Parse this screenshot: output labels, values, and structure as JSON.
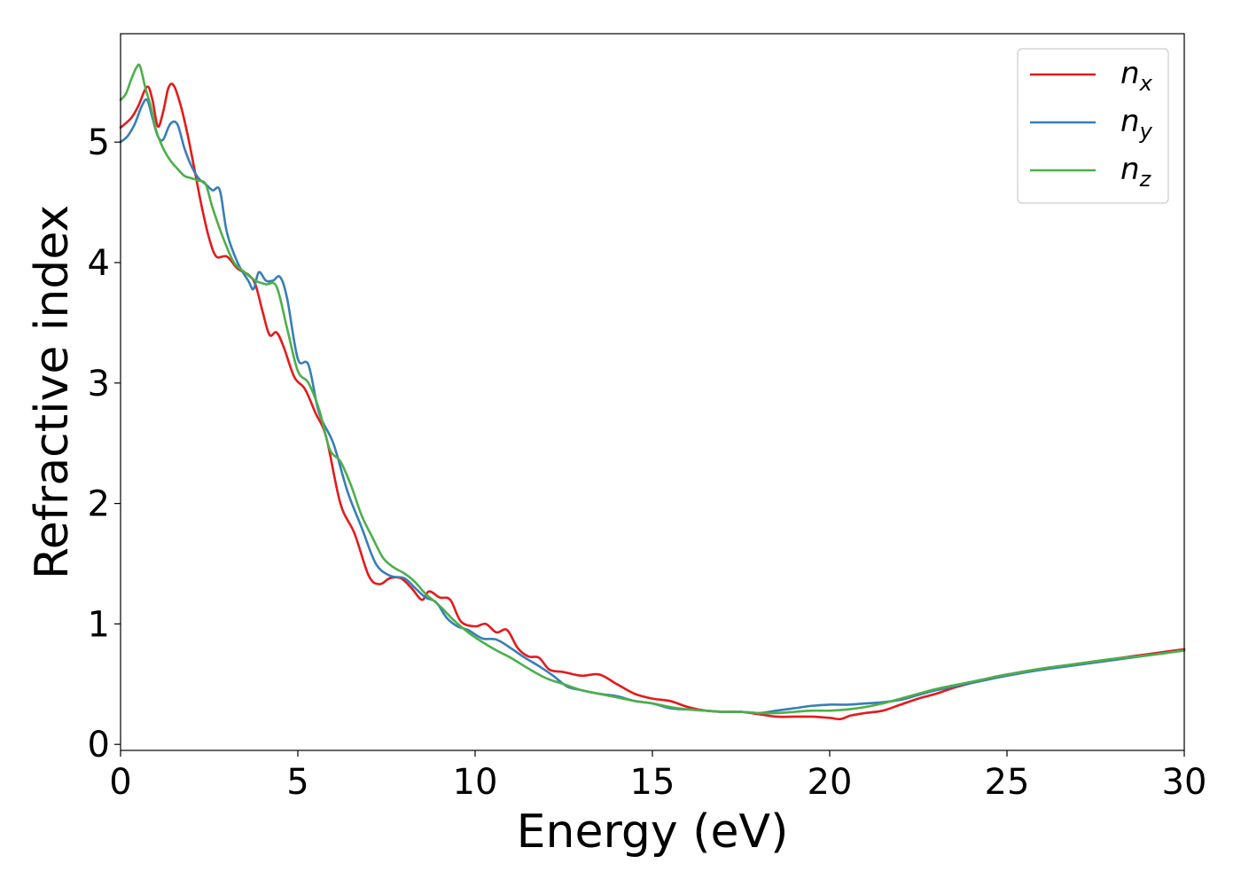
{
  "chart_data": {
    "type": "line",
    "title": "",
    "xlabel": "Energy (eV)",
    "ylabel": "Refractive index",
    "xlim": [
      0,
      30
    ],
    "ylim": [
      -0.05,
      5.9
    ],
    "xticks": [
      "0",
      "5",
      "10",
      "15",
      "20",
      "25",
      "30"
    ],
    "yticks": [
      "0",
      "1",
      "2",
      "3",
      "4",
      "5"
    ],
    "xtick_values": [
      0,
      5,
      10,
      15,
      20,
      25,
      30
    ],
    "ytick_values": [
      0,
      1,
      2,
      3,
      4,
      5
    ],
    "grid": false,
    "legend_position": "top-right",
    "series": [
      {
        "name": "n",
        "sub": "x",
        "color": "#e41a1c",
        "x": [
          0,
          0.3,
          0.5,
          0.75,
          0.9,
          1.05,
          1.2,
          1.35,
          1.5,
          1.7,
          1.9,
          2.1,
          2.3,
          2.5,
          2.7,
          3.0,
          3.3,
          3.6,
          3.8,
          4.0,
          4.2,
          4.4,
          4.6,
          4.9,
          5.2,
          5.5,
          5.8,
          6.2,
          6.6,
          7.0,
          7.3,
          7.6,
          7.9,
          8.2,
          8.5,
          8.7,
          9.0,
          9.3,
          9.6,
          10.0,
          10.3,
          10.6,
          10.9,
          11.2,
          11.5,
          11.8,
          12.1,
          12.5,
          13.0,
          13.5,
          14.0,
          14.5,
          15.0,
          15.5,
          16.0,
          16.5,
          17.0,
          17.5,
          18.0,
          18.5,
          19.0,
          19.5,
          20.0,
          20.3,
          20.6,
          21.0,
          21.5,
          22.0,
          22.5,
          23.0,
          23.5,
          24.0,
          24.5,
          25.0,
          26.0,
          27.0,
          28.0,
          29.0,
          30.0
        ],
        "y": [
          5.12,
          5.2,
          5.3,
          5.46,
          5.35,
          5.13,
          5.25,
          5.45,
          5.47,
          5.3,
          5.05,
          4.75,
          4.45,
          4.2,
          4.05,
          4.05,
          3.95,
          3.9,
          3.82,
          3.6,
          3.4,
          3.42,
          3.3,
          3.05,
          2.95,
          2.75,
          2.55,
          2.0,
          1.75,
          1.4,
          1.33,
          1.38,
          1.38,
          1.3,
          1.2,
          1.27,
          1.22,
          1.2,
          1.02,
          0.98,
          1.0,
          0.93,
          0.95,
          0.8,
          0.73,
          0.72,
          0.62,
          0.6,
          0.57,
          0.58,
          0.5,
          0.42,
          0.38,
          0.36,
          0.31,
          0.28,
          0.27,
          0.27,
          0.25,
          0.23,
          0.23,
          0.23,
          0.22,
          0.21,
          0.24,
          0.26,
          0.28,
          0.33,
          0.38,
          0.42,
          0.47,
          0.51,
          0.55,
          0.58,
          0.63,
          0.67,
          0.71,
          0.75,
          0.79
        ]
      },
      {
        "name": "n",
        "sub": "y",
        "color": "#377eb8",
        "x": [
          0,
          0.2,
          0.4,
          0.6,
          0.75,
          0.9,
          1.05,
          1.2,
          1.4,
          1.6,
          1.8,
          2.0,
          2.2,
          2.4,
          2.6,
          2.8,
          3.0,
          3.3,
          3.6,
          3.75,
          3.9,
          4.1,
          4.3,
          4.5,
          4.7,
          5.0,
          5.3,
          5.6,
          6.0,
          6.4,
          6.8,
          7.2,
          7.6,
          8.0,
          8.3,
          8.6,
          8.9,
          9.2,
          9.5,
          9.8,
          10.2,
          10.6,
          11.0,
          11.4,
          11.8,
          12.2,
          12.6,
          13.0,
          13.5,
          14.0,
          14.5,
          15.0,
          15.5,
          16.0,
          16.5,
          17.0,
          17.5,
          18.0,
          18.5,
          19.0,
          19.5,
          20.0,
          20.5,
          21.0,
          21.5,
          22.0,
          22.5,
          23.0,
          23.5,
          24.0,
          24.5,
          25.0,
          26.0,
          27.0,
          28.0,
          29.0,
          30.0
        ],
        "y": [
          5.0,
          5.05,
          5.15,
          5.3,
          5.35,
          5.2,
          5.05,
          5.02,
          5.15,
          5.15,
          4.95,
          4.8,
          4.7,
          4.65,
          4.6,
          4.6,
          4.25,
          4.0,
          3.85,
          3.78,
          3.92,
          3.85,
          3.85,
          3.88,
          3.7,
          3.2,
          3.15,
          2.75,
          2.5,
          2.1,
          1.8,
          1.5,
          1.4,
          1.38,
          1.3,
          1.22,
          1.18,
          1.05,
          0.98,
          0.95,
          0.88,
          0.87,
          0.8,
          0.72,
          0.65,
          0.57,
          0.48,
          0.45,
          0.42,
          0.4,
          0.36,
          0.34,
          0.3,
          0.29,
          0.28,
          0.27,
          0.27,
          0.26,
          0.28,
          0.3,
          0.32,
          0.33,
          0.33,
          0.34,
          0.35,
          0.37,
          0.41,
          0.45,
          0.48,
          0.51,
          0.54,
          0.57,
          0.62,
          0.66,
          0.7,
          0.74,
          0.78
        ]
      },
      {
        "name": "n",
        "sub": "z",
        "color": "#4daf4a",
        "x": [
          0,
          0.15,
          0.3,
          0.45,
          0.55,
          0.7,
          0.85,
          1.0,
          1.2,
          1.4,
          1.6,
          1.8,
          2.0,
          2.2,
          2.4,
          2.6,
          2.9,
          3.2,
          3.5,
          3.8,
          4.1,
          4.4,
          4.7,
          5.0,
          5.3,
          5.6,
          5.9,
          6.2,
          6.5,
          6.8,
          7.1,
          7.4,
          7.7,
          8.0,
          8.3,
          8.6,
          9.0,
          9.4,
          9.8,
          10.2,
          10.6,
          11.0,
          11.5,
          12.0,
          12.5,
          13.0,
          13.5,
          14.0,
          14.5,
          15.0,
          15.5,
          16.0,
          16.5,
          17.0,
          17.5,
          18.0,
          18.5,
          19.0,
          19.5,
          20.0,
          20.5,
          21.0,
          21.5,
          22.0,
          22.5,
          23.0,
          23.5,
          24.0,
          24.5,
          25.0,
          26.0,
          27.0,
          28.0,
          29.0,
          30.0
        ],
        "y": [
          5.35,
          5.4,
          5.52,
          5.62,
          5.63,
          5.45,
          5.3,
          5.1,
          4.95,
          4.85,
          4.78,
          4.72,
          4.7,
          4.68,
          4.65,
          4.45,
          4.2,
          4.0,
          3.92,
          3.85,
          3.82,
          3.8,
          3.45,
          3.1,
          3.0,
          2.78,
          2.45,
          2.35,
          2.15,
          1.9,
          1.72,
          1.55,
          1.47,
          1.42,
          1.35,
          1.25,
          1.15,
          1.03,
          0.93,
          0.85,
          0.78,
          0.72,
          0.63,
          0.55,
          0.5,
          0.45,
          0.42,
          0.39,
          0.36,
          0.34,
          0.31,
          0.29,
          0.28,
          0.27,
          0.27,
          0.26,
          0.26,
          0.27,
          0.28,
          0.28,
          0.29,
          0.31,
          0.34,
          0.38,
          0.42,
          0.46,
          0.49,
          0.52,
          0.55,
          0.58,
          0.63,
          0.67,
          0.71,
          0.74,
          0.78
        ]
      }
    ]
  }
}
